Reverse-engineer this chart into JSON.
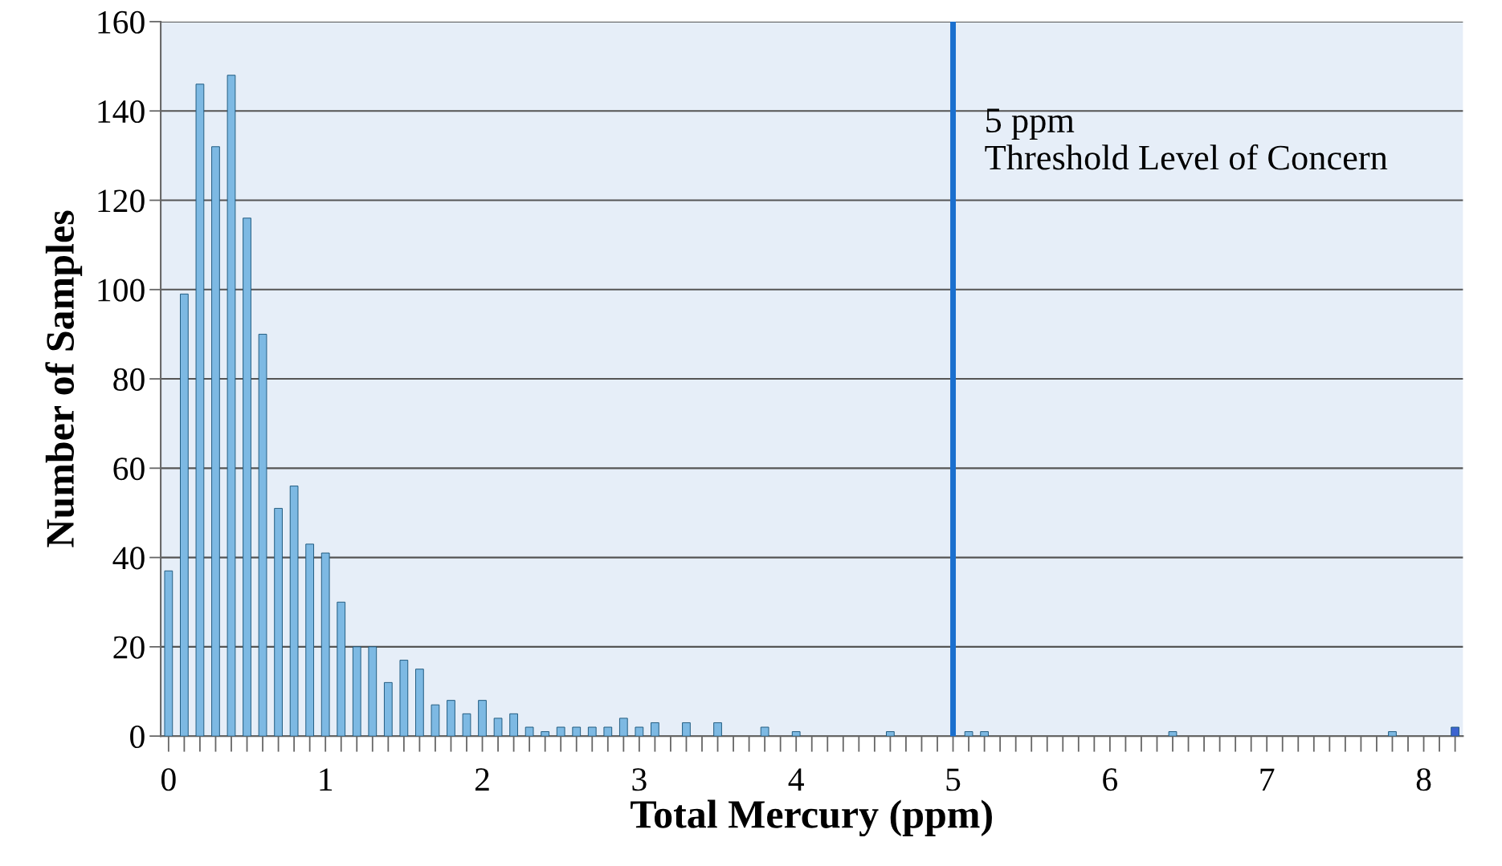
{
  "chart_data": {
    "type": "bar",
    "xlabel": "Total Mercury (ppm)",
    "ylabel": "Number of Samples",
    "categories": [
      "0",
      null,
      null,
      null,
      null,
      null,
      null,
      null,
      null,
      null,
      "1",
      null,
      null,
      null,
      null,
      null,
      null,
      null,
      null,
      null,
      "2",
      null,
      null,
      null,
      null,
      null,
      null,
      null,
      null,
      null,
      "3",
      null,
      null,
      null,
      null,
      null,
      null,
      null,
      null,
      null,
      "4",
      null,
      null,
      null,
      null,
      null,
      null,
      null,
      null,
      null,
      "5",
      null,
      null,
      null,
      null,
      null,
      null,
      null,
      null,
      null,
      "6",
      null,
      null,
      null,
      null,
      null,
      null,
      null,
      null,
      null,
      "7",
      null,
      null,
      null,
      null,
      null,
      null,
      null,
      null,
      null,
      "8",
      null,
      null
    ],
    "series": [
      {
        "color": "#7db9e3",
        "values": [
          37,
          99,
          146,
          132,
          148,
          116,
          90,
          51,
          56,
          43,
          41,
          30,
          20,
          20,
          12,
          17,
          15,
          7,
          8,
          5,
          8,
          4,
          5,
          2,
          1,
          2,
          2,
          2,
          2,
          4,
          2,
          3,
          0,
          3,
          0,
          3,
          0,
          0,
          2,
          0,
          1,
          0,
          0,
          0,
          0,
          0,
          1,
          0,
          0,
          0,
          0,
          1,
          1,
          0,
          0,
          0,
          0,
          0,
          0,
          0,
          0,
          0,
          0,
          0,
          1,
          0,
          0,
          0,
          0,
          0,
          0,
          0,
          0,
          0,
          0,
          0,
          0,
          0,
          1,
          0,
          0,
          0,
          null
        ]
      },
      {
        "color": "#3d64d0",
        "values": [
          null,
          null,
          null,
          null,
          null,
          null,
          null,
          null,
          null,
          null,
          null,
          null,
          null,
          null,
          null,
          null,
          null,
          null,
          null,
          null,
          null,
          null,
          null,
          null,
          null,
          null,
          null,
          null,
          null,
          null,
          null,
          null,
          null,
          null,
          null,
          null,
          null,
          null,
          null,
          null,
          null,
          null,
          null,
          null,
          null,
          null,
          null,
          null,
          null,
          null,
          null,
          null,
          null,
          null,
          null,
          null,
          null,
          null,
          null,
          null,
          null,
          null,
          null,
          null,
          null,
          null,
          null,
          null,
          null,
          null,
          null,
          null,
          null,
          null,
          null,
          null,
          null,
          null,
          null,
          null,
          null,
          null,
          2
        ]
      }
    ],
    "ylim": [
      0,
      160
    ],
    "yticks": [
      0,
      20,
      40,
      60,
      80,
      100,
      120,
      140,
      160
    ],
    "grid": "y",
    "ref_lines": [
      {
        "axis": "x",
        "value": "5",
        "label": "5 ppm\nThreshold Level of Concern",
        "color": "#1a6fce"
      }
    ]
  }
}
